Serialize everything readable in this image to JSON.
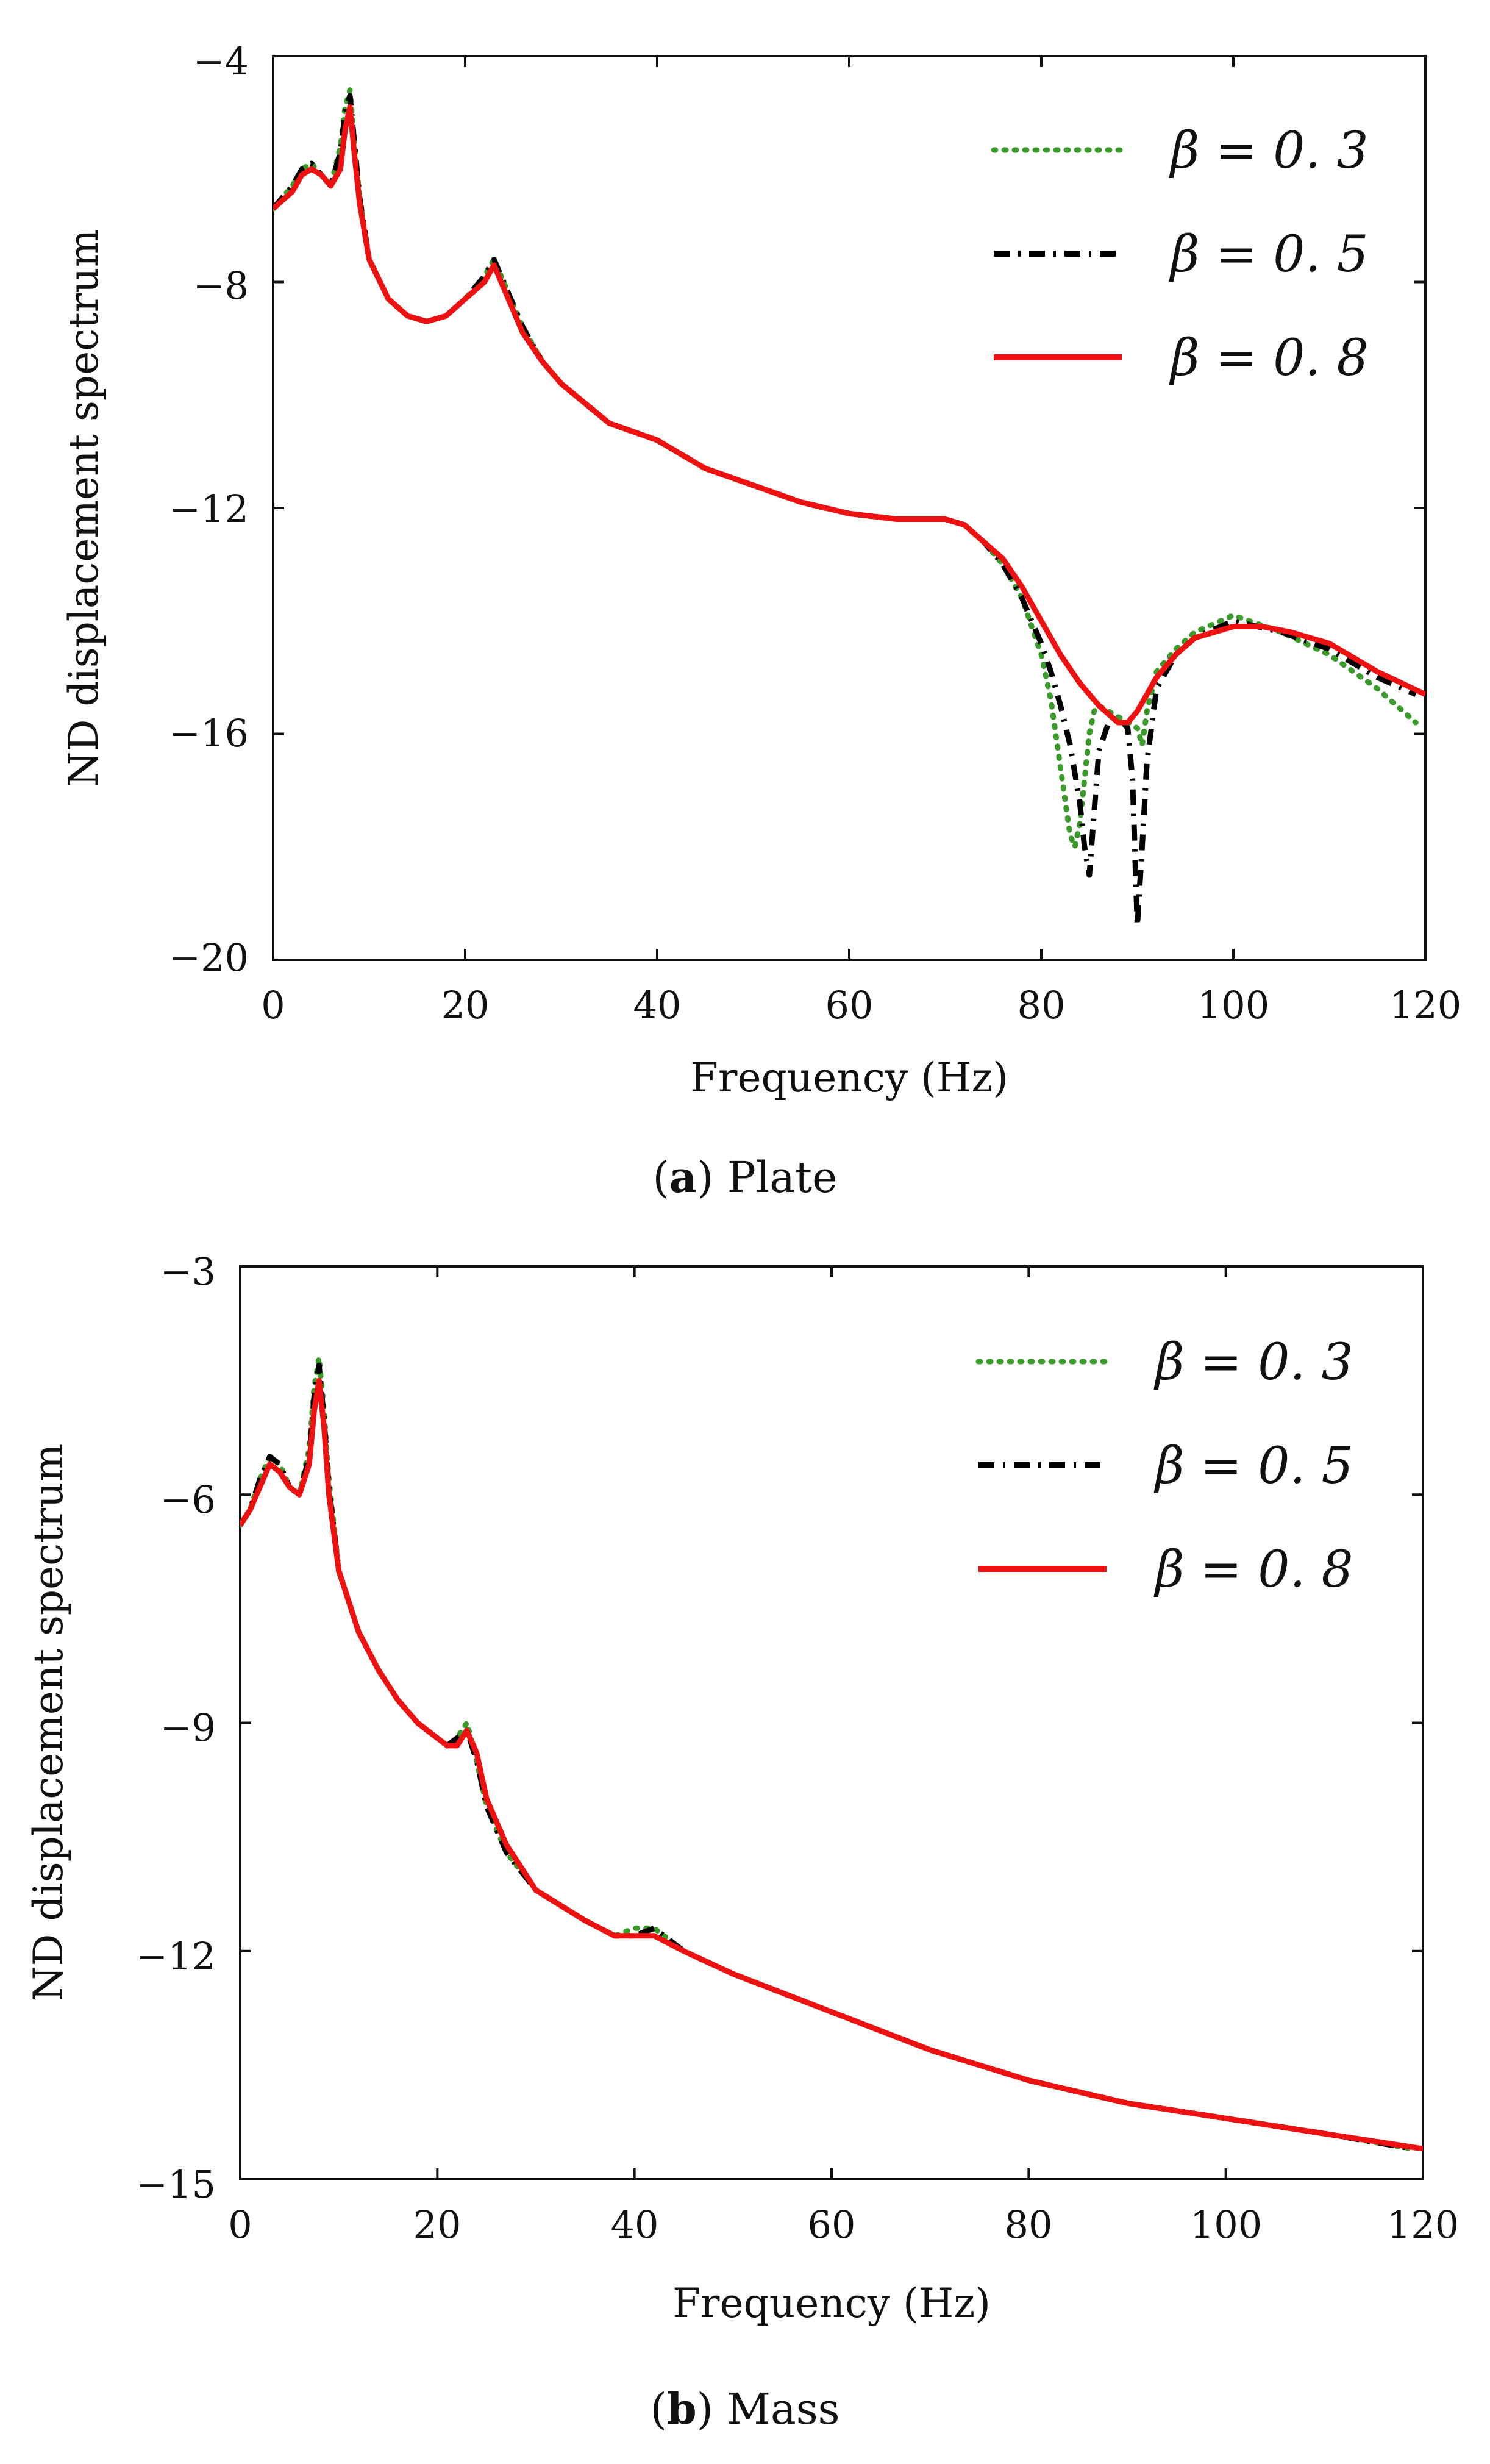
{
  "chart_data": [
    {
      "type": "line",
      "caption_letter": "a",
      "caption_title": "Plate",
      "xlabel": "Frequency (Hz)",
      "ylabel": "ND displacement spectrum",
      "xlim": [
        0,
        120
      ],
      "ylim": [
        -20,
        -4
      ],
      "xticks": [
        "0",
        "20",
        "40",
        "60",
        "80",
        "100",
        "120"
      ],
      "yticks": [
        "−4",
        "−8",
        "−12",
        "−16",
        "−20"
      ],
      "legend_position": "top-right",
      "series": [
        {
          "name": "β = 0. 3",
          "color": "#3a9a2a",
          "style": "dotted",
          "x": [
            0,
            2,
            3,
            4,
            5,
            6,
            7,
            7.5,
            8,
            8.5,
            9,
            10,
            12,
            14,
            16,
            18,
            20,
            22,
            23,
            24,
            26,
            28,
            30,
            35,
            40,
            45,
            50,
            55,
            60,
            65,
            70,
            72,
            74,
            76,
            78,
            80,
            81,
            82,
            83,
            83.5,
            84,
            84.5,
            85,
            85.5,
            86,
            87,
            88,
            89,
            90,
            90.5,
            91,
            92,
            94,
            96,
            100,
            105,
            110,
            115,
            119
          ],
          "y": [
            -6.7,
            -6.3,
            -6.0,
            -5.9,
            -6.1,
            -6.3,
            -5.6,
            -4.9,
            -4.6,
            -5.6,
            -6.5,
            -7.6,
            -8.3,
            -8.6,
            -8.7,
            -8.6,
            -8.3,
            -7.9,
            -7.6,
            -8.0,
            -8.8,
            -9.4,
            -9.8,
            -10.5,
            -10.8,
            -11.3,
            -11.6,
            -11.9,
            -12.1,
            -12.2,
            -12.2,
            -12.3,
            -12.6,
            -13.0,
            -13.6,
            -14.6,
            -15.4,
            -16.6,
            -17.8,
            -18.0,
            -17.6,
            -16.8,
            -16.0,
            -15.6,
            -15.5,
            -15.6,
            -15.7,
            -15.8,
            -15.9,
            -16.2,
            -15.6,
            -14.9,
            -14.5,
            -14.2,
            -13.9,
            -14.2,
            -14.6,
            -15.2,
            -15.8
          ]
        },
        {
          "name": "β = 0. 5",
          "color": "#000000",
          "style": "dashdot",
          "x": [
            0,
            2,
            3,
            4,
            5,
            6,
            7,
            7.5,
            8,
            8.5,
            9,
            10,
            12,
            14,
            16,
            18,
            20,
            22,
            23,
            24,
            26,
            28,
            30,
            35,
            40,
            45,
            50,
            55,
            60,
            65,
            70,
            72,
            74,
            76,
            78,
            80,
            81,
            82,
            83,
            84,
            84.5,
            85,
            85.5,
            86,
            87,
            88,
            89,
            89.5,
            90,
            90.5,
            91,
            92,
            94,
            96,
            100,
            105,
            110,
            115,
            119
          ],
          "y": [
            -6.7,
            -6.3,
            -6.0,
            -5.9,
            -6.1,
            -6.3,
            -5.7,
            -5.0,
            -4.7,
            -5.6,
            -6.5,
            -7.6,
            -8.3,
            -8.6,
            -8.7,
            -8.6,
            -8.3,
            -7.9,
            -7.6,
            -8.0,
            -8.8,
            -9.4,
            -9.8,
            -10.5,
            -10.8,
            -11.3,
            -11.6,
            -11.9,
            -12.1,
            -12.2,
            -12.2,
            -12.3,
            -12.6,
            -13.0,
            -13.6,
            -14.4,
            -14.9,
            -15.5,
            -16.2,
            -17.2,
            -18.0,
            -18.5,
            -17.4,
            -16.3,
            -15.8,
            -15.7,
            -15.9,
            -16.8,
            -19.4,
            -18.0,
            -16.5,
            -15.2,
            -14.6,
            -14.3,
            -14.0,
            -14.2,
            -14.5,
            -15.0,
            -15.3
          ]
        },
        {
          "name": "β = 0. 8",
          "color": "#ee1111",
          "style": "solid",
          "x": [
            0,
            2,
            3,
            4,
            5,
            6,
            7,
            7.5,
            8,
            8.5,
            9,
            10,
            12,
            14,
            16,
            18,
            20,
            22,
            23,
            24,
            26,
            28,
            30,
            35,
            40,
            45,
            50,
            55,
            60,
            65,
            70,
            72,
            74,
            76,
            78,
            80,
            82,
            84,
            86,
            88,
            89,
            90,
            91,
            92,
            94,
            96,
            100,
            103,
            106,
            110,
            115,
            120
          ],
          "y": [
            -6.7,
            -6.4,
            -6.1,
            -6.0,
            -6.1,
            -6.3,
            -6.0,
            -5.3,
            -4.9,
            -5.8,
            -6.6,
            -7.6,
            -8.3,
            -8.6,
            -8.7,
            -8.6,
            -8.3,
            -8.0,
            -7.7,
            -8.1,
            -8.9,
            -9.4,
            -9.8,
            -10.5,
            -10.8,
            -11.3,
            -11.6,
            -11.9,
            -12.1,
            -12.2,
            -12.2,
            -12.3,
            -12.6,
            -12.9,
            -13.4,
            -14.0,
            -14.6,
            -15.1,
            -15.5,
            -15.8,
            -15.8,
            -15.6,
            -15.3,
            -15.0,
            -14.6,
            -14.3,
            -14.1,
            -14.1,
            -14.2,
            -14.4,
            -14.9,
            -15.3
          ]
        }
      ]
    },
    {
      "type": "line",
      "caption_letter": "b",
      "caption_title": "Mass",
      "xlabel": "Frequency (Hz)",
      "ylabel": "ND displacement spectrum",
      "xlim": [
        0,
        120
      ],
      "ylim": [
        -15,
        -3
      ],
      "xticks": [
        "0",
        "20",
        "40",
        "60",
        "80",
        "100",
        "120"
      ],
      "yticks": [
        "−3",
        "−6",
        "−9",
        "−12",
        "−15"
      ],
      "legend_position": "top-right",
      "series": [
        {
          "name": "β = 0. 3",
          "color": "#3a9a2a",
          "style": "dotted",
          "x": [
            0,
            1,
            2,
            3,
            4,
            5,
            6,
            7,
            7.5,
            8,
            8.5,
            9,
            10,
            12,
            14,
            16,
            18,
            20,
            21,
            22,
            23,
            24,
            25,
            27,
            30,
            35,
            38,
            40,
            42,
            45,
            50,
            60,
            70,
            80,
            90,
            100,
            110,
            119
          ],
          "y": [
            -6.4,
            -6.2,
            -5.8,
            -5.5,
            -5.6,
            -5.9,
            -6.0,
            -5.4,
            -4.6,
            -4.2,
            -4.9,
            -5.8,
            -7.0,
            -7.8,
            -8.3,
            -8.7,
            -9.0,
            -9.2,
            -9.3,
            -9.2,
            -9.0,
            -9.5,
            -10.1,
            -10.7,
            -11.2,
            -11.6,
            -11.8,
            -11.7,
            -11.7,
            -12.0,
            -12.3,
            -12.8,
            -13.3,
            -13.7,
            -14.0,
            -14.2,
            -14.4,
            -14.6
          ]
        },
        {
          "name": "β = 0. 5",
          "color": "#000000",
          "style": "dashdot",
          "x": [
            0,
            1,
            2,
            3,
            4,
            5,
            6,
            7,
            7.5,
            8,
            8.5,
            9,
            10,
            12,
            14,
            16,
            18,
            20,
            21,
            22,
            23,
            24,
            25,
            27,
            30,
            35,
            38,
            40,
            42,
            45,
            50,
            60,
            70,
            80,
            90,
            100,
            110,
            119
          ],
          "y": [
            -6.4,
            -6.2,
            -5.8,
            -5.5,
            -5.6,
            -5.9,
            -6.0,
            -5.5,
            -4.7,
            -4.3,
            -5.0,
            -5.9,
            -7.0,
            -7.8,
            -8.3,
            -8.7,
            -9.0,
            -9.2,
            -9.3,
            -9.2,
            -9.1,
            -9.5,
            -10.1,
            -10.7,
            -11.2,
            -11.6,
            -11.8,
            -11.8,
            -11.7,
            -12.0,
            -12.3,
            -12.8,
            -13.3,
            -13.7,
            -14.0,
            -14.2,
            -14.4,
            -14.6
          ]
        },
        {
          "name": "β = 0. 8",
          "color": "#ee1111",
          "style": "solid",
          "x": [
            0,
            1,
            2,
            3,
            4,
            5,
            6,
            7,
            7.5,
            8,
            8.5,
            9,
            10,
            12,
            14,
            16,
            18,
            20,
            21,
            22,
            23,
            24,
            25,
            27,
            30,
            35,
            38,
            40,
            42,
            45,
            50,
            60,
            70,
            80,
            90,
            100,
            110,
            120
          ],
          "y": [
            -6.4,
            -6.2,
            -5.9,
            -5.6,
            -5.7,
            -5.9,
            -6.0,
            -5.6,
            -4.9,
            -4.5,
            -5.1,
            -6.0,
            -7.0,
            -7.8,
            -8.3,
            -8.7,
            -9.0,
            -9.2,
            -9.3,
            -9.3,
            -9.1,
            -9.4,
            -10.0,
            -10.6,
            -11.2,
            -11.6,
            -11.8,
            -11.8,
            -11.8,
            -12.0,
            -12.3,
            -12.8,
            -13.3,
            -13.7,
            -14.0,
            -14.2,
            -14.4,
            -14.6
          ]
        }
      ]
    }
  ]
}
